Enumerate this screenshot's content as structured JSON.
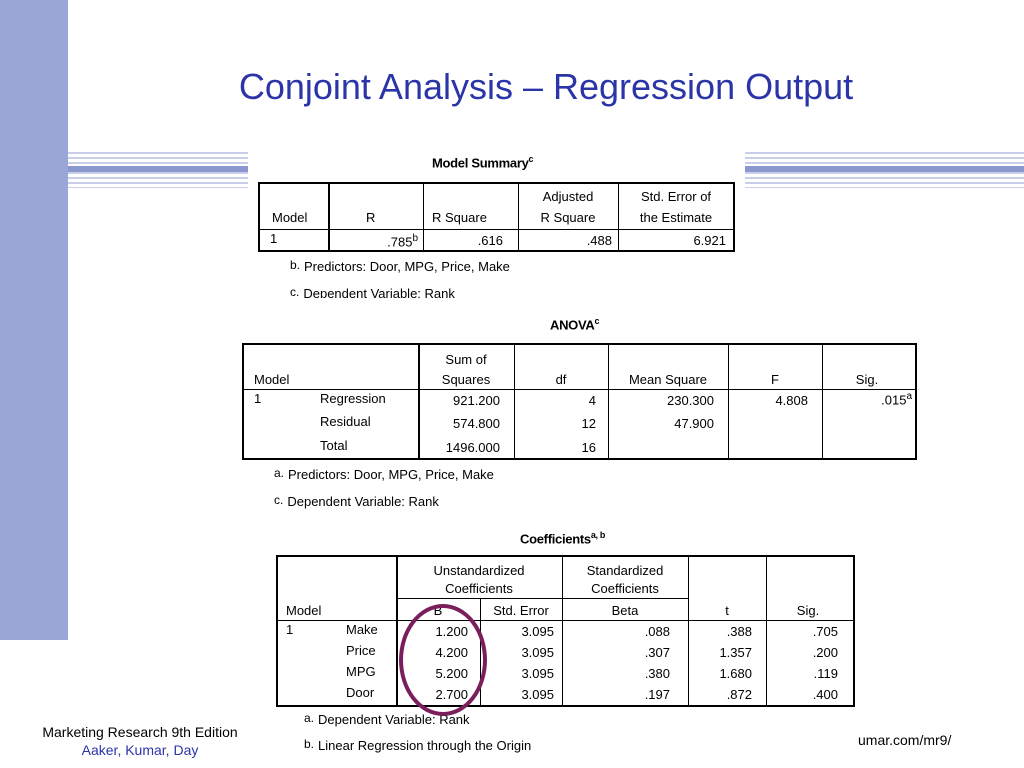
{
  "slide": {
    "title": "Conjoint Analysis – Regression Output",
    "footer_line1": "Marketing Research 9th Edition",
    "footer_line2": "Aaker, Kumar, Day",
    "footer_url": "umar.com/mr9/"
  },
  "model_summary": {
    "title": "Model Summary",
    "title_sup": "c",
    "headers": {
      "model": "Model",
      "r": "R",
      "r_square": "R Square",
      "adj1": "Adjusted",
      "adj2": "R Square",
      "se1": "Std. Error of",
      "se2": "the Estimate"
    },
    "row": {
      "model": "1",
      "r": ".785",
      "r_sup": "b",
      "r_square": ".616",
      "adj": ".488",
      "se": "6.921"
    },
    "note_b_mark": "b.",
    "note_b": "Predictors: Door, MPG, Price, Make",
    "note_c_mark": "c.",
    "note_c": "Dependent Variable: Rank"
  },
  "anova": {
    "title": "ANOVA",
    "title_sup": "c",
    "headers": {
      "model": "Model",
      "ss1": "Sum of",
      "ss2": "Squares",
      "df": "df",
      "ms": "Mean Square",
      "f": "F",
      "sig": "Sig."
    },
    "model_no": "1",
    "rows": [
      {
        "label": "Regression",
        "ss": "921.200",
        "df": "4",
        "ms": "230.300",
        "f": "4.808",
        "sig": ".015",
        "sig_sup": "a"
      },
      {
        "label": "Residual",
        "ss": "574.800",
        "df": "12",
        "ms": "47.900"
      },
      {
        "label": "Total",
        "ss": "1496.000",
        "df": "16"
      }
    ],
    "note_a_mark": "a.",
    "note_a": "Predictors: Door, MPG, Price, Make",
    "note_c_mark": "c.",
    "note_c": "Dependent Variable: Rank"
  },
  "coefficients": {
    "title": "Coefficients",
    "title_sup": "a, b",
    "headers": {
      "model": "Model",
      "unstd1": "Unstandardized",
      "unstd2": "Coefficients",
      "std1": "Standardized",
      "std2": "Coefficients",
      "b": "B",
      "se": "Std. Error",
      "beta": "Beta",
      "t": "t",
      "sig": "Sig."
    },
    "model_no": "1",
    "rows": [
      {
        "label": "Make",
        "b": "1.200",
        "se": "3.095",
        "beta": ".088",
        "t": ".388",
        "sig": ".705"
      },
      {
        "label": "Price",
        "b": "4.200",
        "se": "3.095",
        "beta": ".307",
        "t": "1.357",
        "sig": ".200"
      },
      {
        "label": "MPG",
        "b": "5.200",
        "se": "3.095",
        "beta": ".380",
        "t": "1.680",
        "sig": ".119"
      },
      {
        "label": "Door",
        "b": "2.700",
        "se": "3.095",
        "beta": ".197",
        "t": ".872",
        "sig": ".400"
      }
    ],
    "note_a_mark": "a.",
    "note_a": "Dependent Variable: Rank",
    "note_b_mark": "b.",
    "note_b": "Linear Regression through the Origin"
  },
  "colors": {
    "title": "#2b35a8",
    "sidebar": "#99a6d6",
    "circle": "#7a1f5c"
  }
}
